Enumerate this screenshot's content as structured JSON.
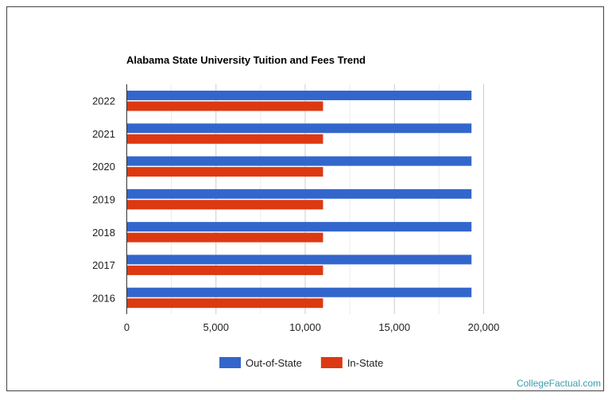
{
  "chart_data": {
    "type": "bar",
    "orientation": "horizontal",
    "title": "Alabama State University Tuition and Fees Trend",
    "categories": [
      "2022",
      "2021",
      "2020",
      "2019",
      "2018",
      "2017",
      "2016"
    ],
    "series": [
      {
        "name": "Out-of-State",
        "color": "#3366cc",
        "values": [
          19320,
          19320,
          19320,
          19320,
          19320,
          19320,
          19320
        ]
      },
      {
        "name": "In-State",
        "color": "#dc3912",
        "values": [
          11000,
          11000,
          11000,
          11000,
          11000,
          11000,
          11000
        ]
      }
    ],
    "xlim": [
      0,
      20000
    ],
    "xticks": [
      0,
      5000,
      10000,
      15000,
      20000
    ],
    "xtick_labels": [
      "0",
      "5,000",
      "10,000",
      "15,000",
      "20,000"
    ],
    "grid": true,
    "legend_position": "bottom"
  },
  "credit": "CollegeFactual.com"
}
